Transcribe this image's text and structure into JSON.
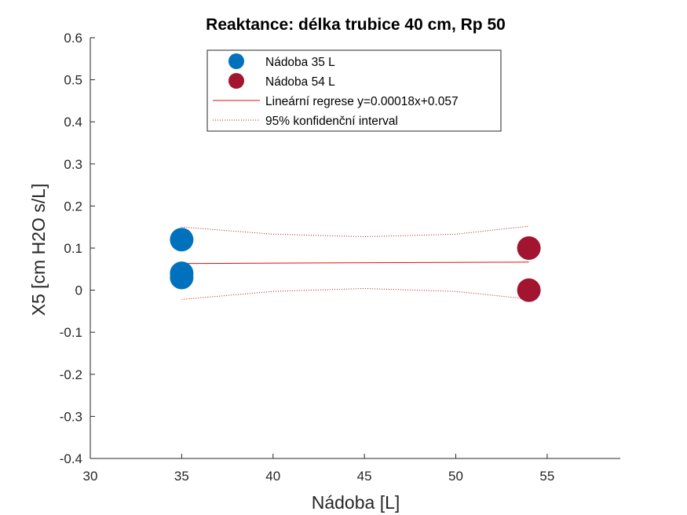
{
  "chart_data": {
    "type": "scatter",
    "title": "Reaktance: délka trubice 40 cm, Rp 50",
    "xlabel": "Nádoba [L]",
    "ylabel": "X5 [cm H2O s/L]",
    "xlim": [
      30,
      59
    ],
    "ylim": [
      -0.4,
      0.6
    ],
    "xticks": [
      30,
      35,
      40,
      45,
      50,
      55
    ],
    "yticks": [
      -0.4,
      -0.3,
      -0.2,
      -0.1,
      0,
      0.1,
      0.2,
      0.3,
      0.4,
      0.5,
      0.6
    ],
    "xtick_labels": [
      "30",
      "35",
      "40",
      "45",
      "50",
      "55"
    ],
    "ytick_labels": [
      "-0.4",
      "-0.3",
      "-0.2",
      "-0.1",
      "0",
      "0.1",
      "0.2",
      "0.3",
      "0.4",
      "0.5",
      "0.6"
    ],
    "grid": false,
    "legend_position": "top-center",
    "series": [
      {
        "name": "Nádoba 35 L",
        "kind": "scatter",
        "color": "#0072BD",
        "points": [
          [
            35,
            0.12
          ],
          [
            35,
            0.04
          ],
          [
            35,
            0.03
          ]
        ]
      },
      {
        "name": "Nádoba 54 L",
        "kind": "scatter",
        "color": "#A2142F",
        "points": [
          [
            54,
            0.1
          ],
          [
            54,
            0.0
          ]
        ]
      },
      {
        "name": "Lineární regrese y=0.00018x+0.057",
        "kind": "line",
        "color": "#E01010",
        "slope": 0.00018,
        "intercept": 0.057,
        "x_range": [
          35,
          54
        ]
      },
      {
        "name": "95% konfidenční interval",
        "kind": "band",
        "color": "#CC1010",
        "x": [
          35,
          40,
          45,
          50,
          54
        ],
        "upper": [
          0.15,
          0.133,
          0.127,
          0.133,
          0.152
        ],
        "lower": [
          -0.022,
          -0.003,
          0.004,
          -0.003,
          -0.021
        ]
      }
    ]
  }
}
